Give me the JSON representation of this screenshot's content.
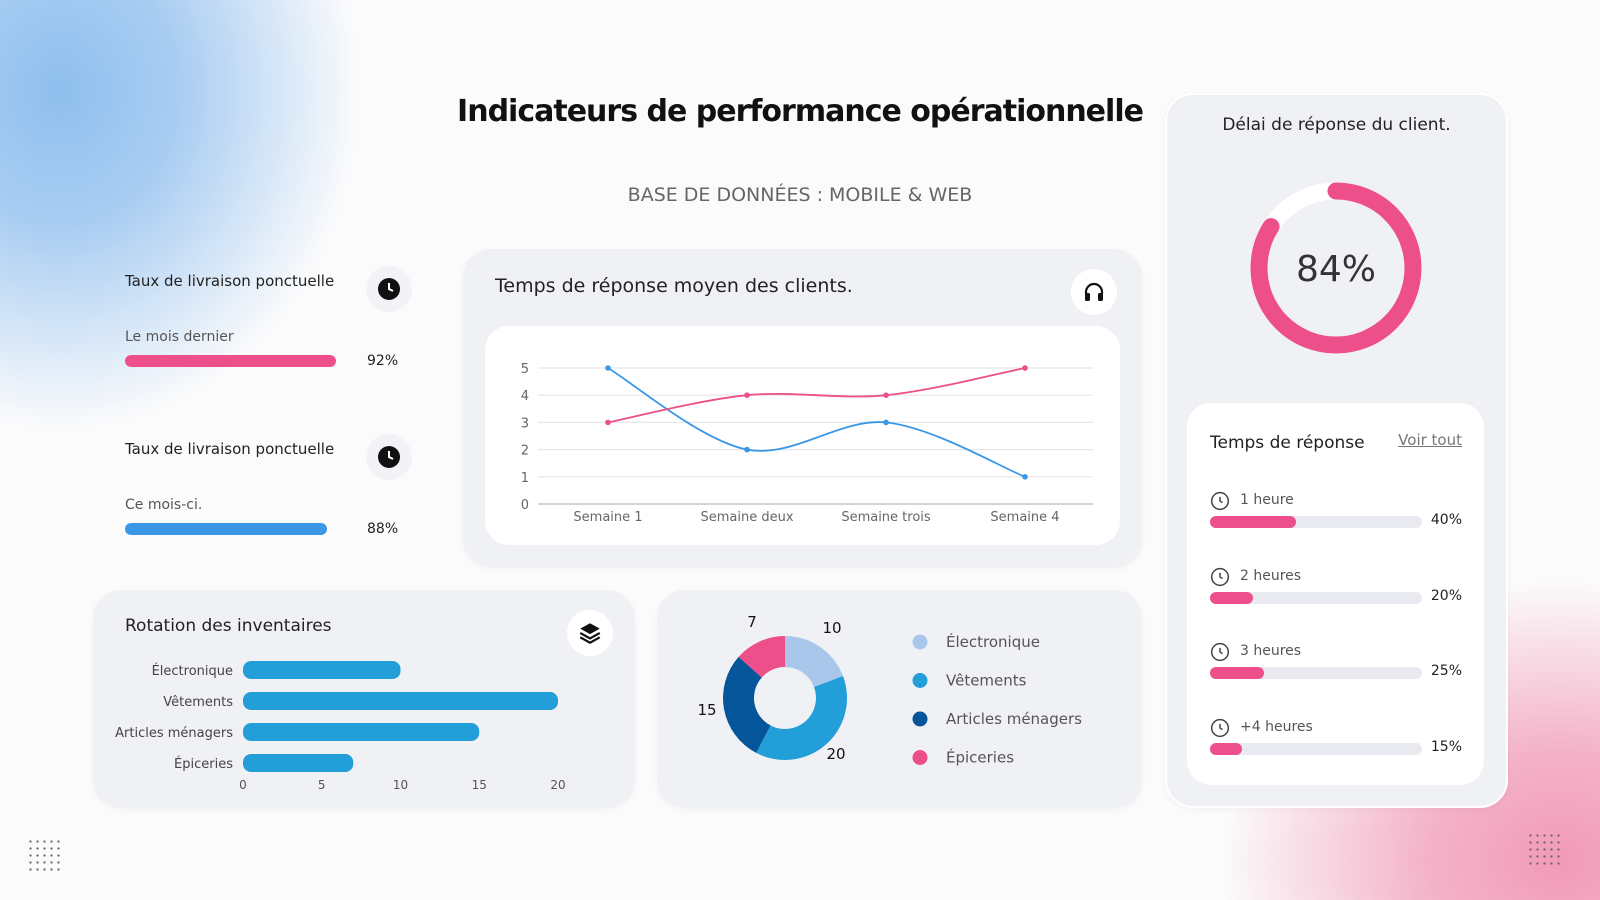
{
  "header": {
    "title": "Indicateurs de performance opérationnelle",
    "subtitle": "BASE DE DONNÉES : MOBILE & WEB"
  },
  "kpis": [
    {
      "label": "Taux de livraison ponctuelle",
      "period": "Le mois dernier",
      "value": 92,
      "value_label": "92%",
      "color": "#ec4f8a"
    },
    {
      "label": "Taux de livraison ponctuelle",
      "period": "Ce mois-ci.",
      "value": 88,
      "value_label": "88%",
      "color": "#3a97e6"
    }
  ],
  "line_card": {
    "title": "Temps de réponse moyen des clients."
  },
  "inventory_card": {
    "title": "Rotation des inventaires"
  },
  "response_panel": {
    "title": "Délai de réponse du client.",
    "gauge_value": 84,
    "gauge_label": "84%",
    "list_title": "Temps de réponse",
    "see_all": "Voir tout",
    "items": [
      {
        "label": "1 heure",
        "value": 40,
        "value_label": "40%"
      },
      {
        "label": "2 heures",
        "value": 20,
        "value_label": "20%"
      },
      {
        "label": "3 heures",
        "value": 25,
        "value_label": "25%"
      },
      {
        "label": "+4 heures",
        "value": 15,
        "value_label": "15%"
      }
    ]
  },
  "colors": {
    "pink": "#ec4f8a",
    "blue": "#3a97e6",
    "bar": "#229fd8"
  },
  "chart_data": [
    {
      "type": "line",
      "categories": [
        "Semaine 1",
        "Semaine deux",
        "Semaine trois",
        "Semaine 4"
      ],
      "ylim": [
        0,
        5
      ],
      "yticks": [
        "0",
        "1",
        "2",
        "3",
        "4",
        "5"
      ],
      "series": [
        {
          "name": "blue",
          "color": "#3a97e6",
          "values": [
            5,
            2,
            3,
            1
          ]
        },
        {
          "name": "pink",
          "color": "#ec4f8a",
          "values": [
            3,
            4,
            4,
            5
          ]
        }
      ]
    },
    {
      "type": "bar",
      "orientation": "horizontal",
      "categories": [
        "Électronique",
        "Vêtements",
        "Articles ménagers",
        "Épiceries"
      ],
      "values": [
        10,
        20,
        15,
        7
      ],
      "xlim": [
        0,
        20
      ],
      "xticks": [
        "0",
        "5",
        "10",
        "15",
        "20"
      ]
    },
    {
      "type": "pie",
      "donut": true,
      "categories": [
        "Électronique",
        "Vêtements",
        "Articles ménagers",
        "Épiceries"
      ],
      "values": [
        10,
        20,
        15,
        7
      ],
      "value_labels": [
        "10",
        "20",
        "15",
        "7"
      ],
      "colors": [
        "#a9c7ea",
        "#229fd8",
        "#04559a",
        "#ec4f8a"
      ]
    }
  ]
}
